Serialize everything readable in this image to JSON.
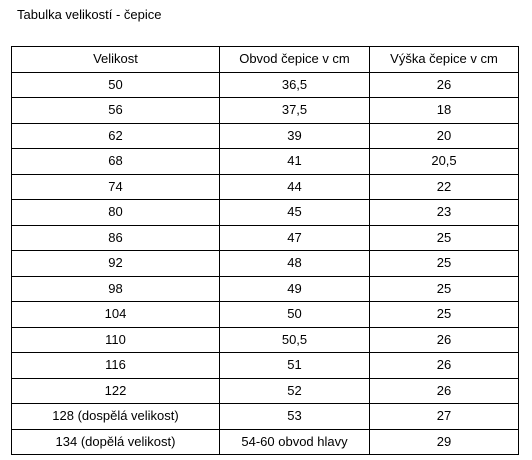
{
  "title": "Tabulka velikostí - čepice",
  "table": {
    "headers": [
      "Velikost",
      "Obvod čepice v cm",
      "Výška čepice v cm"
    ],
    "rows": [
      [
        "50",
        "36,5",
        "26"
      ],
      [
        "56",
        "37,5",
        "18"
      ],
      [
        "62",
        "39",
        "20"
      ],
      [
        "68",
        "41",
        "20,5"
      ],
      [
        "74",
        "44",
        "22"
      ],
      [
        "80",
        "45",
        "23"
      ],
      [
        "86",
        "47",
        "25"
      ],
      [
        "92",
        "48",
        "25"
      ],
      [
        "98",
        "49",
        "25"
      ],
      [
        "104",
        "50",
        "25"
      ],
      [
        "110",
        "50,5",
        "26"
      ],
      [
        "116",
        "51",
        "26"
      ],
      [
        "122",
        "52",
        "26"
      ],
      [
        "128 (dospělá velikost)",
        "53",
        "27"
      ],
      [
        "134 (dopělá velikost)",
        "54-60 obvod hlavy",
        "29"
      ]
    ]
  }
}
